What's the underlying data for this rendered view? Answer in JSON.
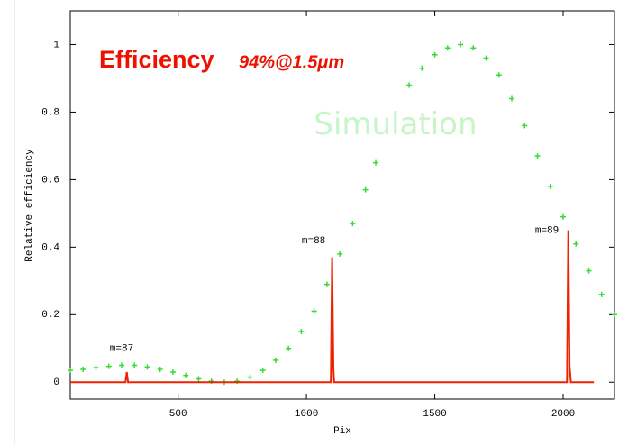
{
  "chart_data": {
    "type": "line",
    "title": "Efficiency",
    "subtitle": "94%@1.5μm",
    "x_label": "Pix",
    "y_label": "Relative efficiency",
    "xlim": [
      80,
      2200
    ],
    "ylim": [
      -0.05,
      1.1
    ],
    "xticks": [
      500,
      1000,
      1500,
      2000
    ],
    "yticks": [
      0,
      0.2,
      0.4,
      0.6,
      0.8,
      1
    ],
    "series": [
      {
        "type": "scatter",
        "color": "#33dd33",
        "x": [
          80,
          130,
          180,
          230,
          280,
          330,
          380,
          430,
          480,
          530,
          580,
          630,
          680,
          730,
          780,
          830,
          880,
          930,
          980,
          1030,
          1080,
          1130,
          1180,
          1230,
          1270,
          1400,
          1450,
          1500,
          1550,
          1600,
          1650,
          1700,
          1750,
          1800,
          1850,
          1900,
          1950,
          2000,
          2050,
          2100,
          2150,
          2200
        ],
        "values": [
          0.035,
          0.038,
          0.043,
          0.047,
          0.05,
          0.05,
          0.045,
          0.038,
          0.03,
          0.02,
          0.01,
          0.003,
          0.0,
          0.003,
          0.015,
          0.035,
          0.065,
          0.1,
          0.15,
          0.21,
          0.29,
          0.38,
          0.47,
          0.57,
          0.65,
          0.88,
          0.93,
          0.97,
          0.99,
          1.0,
          0.99,
          0.96,
          0.91,
          0.84,
          0.76,
          0.67,
          0.58,
          0.49,
          0.41,
          0.33,
          0.26,
          0.2
        ]
      },
      {
        "type": "line",
        "color": "#ee2200",
        "x": [
          80,
          295,
          300,
          305,
          1095,
          1100,
          1105,
          1108,
          2015,
          2020,
          2025,
          2030,
          2120
        ],
        "values": [
          0,
          0,
          0.03,
          0,
          0,
          0.37,
          0.04,
          0,
          0,
          0.45,
          0.05,
          0,
          0
        ]
      }
    ],
    "annotations": [
      {
        "text": "m=87",
        "x": 280,
        "y": 0.1
      },
      {
        "text": "m=88",
        "x": 1028,
        "y": 0.42
      },
      {
        "text": "m=89",
        "x": 1937,
        "y": 0.45
      },
      {
        "text": "Simulation",
        "x": 1347,
        "y": 0.76
      }
    ]
  }
}
